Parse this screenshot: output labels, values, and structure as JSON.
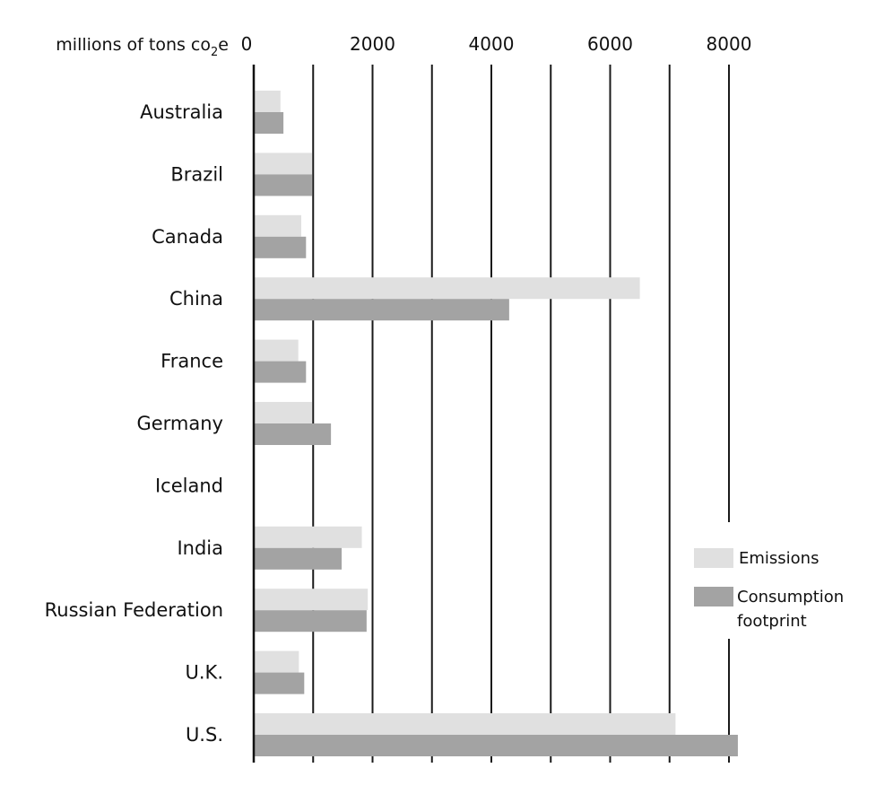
{
  "chart_data": {
    "type": "bar",
    "orientation": "horizontal",
    "unit_label": {
      "prefix": "millions of tons co",
      "subscript": "2",
      "suffix": "e"
    },
    "categories": [
      "Australia",
      "Brazil",
      "Canada",
      "China",
      "France",
      "Germany",
      "Iceland",
      "India",
      "Russian Federation",
      "U.K.",
      "U.S."
    ],
    "series": [
      {
        "name": "Emissions",
        "color": "#e0e0e0",
        "values": [
          450,
          980,
          800,
          6500,
          750,
          980,
          5,
          1820,
          1920,
          760,
          7100
        ]
      },
      {
        "name": "Consumption footprint",
        "color": "#a3a3a3",
        "values": [
          500,
          980,
          880,
          4300,
          880,
          1300,
          5,
          1480,
          1900,
          850,
          8150
        ]
      }
    ],
    "xlim": [
      0,
      8000
    ],
    "xticks": [
      0,
      2000,
      4000,
      6000,
      8000
    ],
    "grid": "vertical lines every 1000",
    "legend": {
      "position": "right",
      "entries": [
        "Emissions",
        "Consumption footprint"
      ]
    }
  }
}
